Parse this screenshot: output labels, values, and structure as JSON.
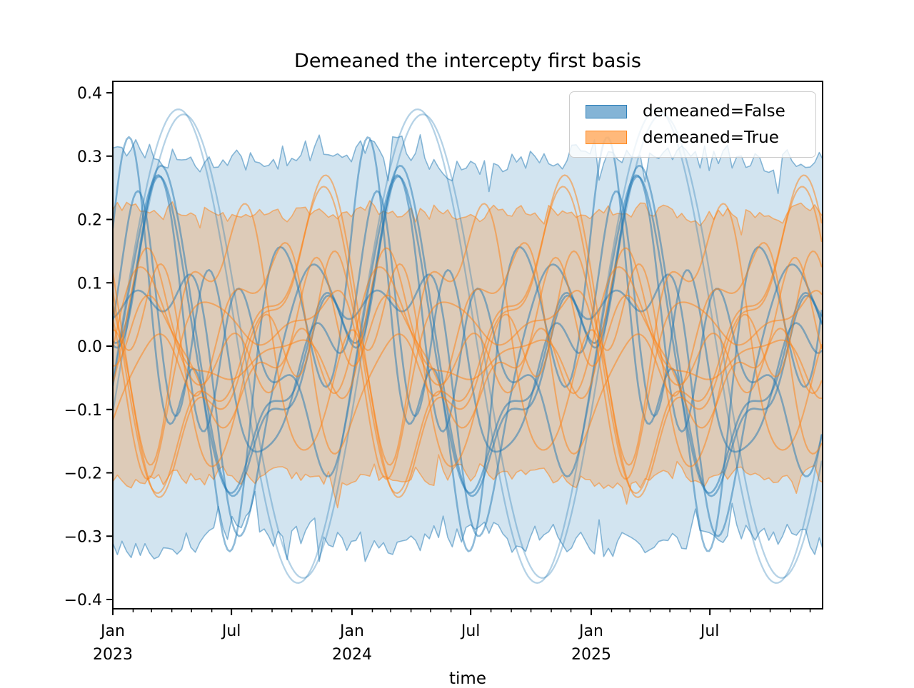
{
  "title": "Demeaned the intercepty first basis",
  "xlabel": "time",
  "legend": {
    "entries": [
      {
        "label": "demeaned=False",
        "color": "#1f77b4"
      },
      {
        "label": "demeaned=True",
        "color": "#ff7f0e"
      }
    ]
  },
  "chart_data": {
    "type": "line",
    "title": "Demeaned the intercepty first basis",
    "xlabel": "time",
    "ylabel": "",
    "ylim": [
      -0.4,
      0.4
    ],
    "grid": false,
    "legend_position": "upper right",
    "yticks": [
      {
        "value": 0.4,
        "label": "0.4"
      },
      {
        "value": 0.3,
        "label": "0.3"
      },
      {
        "value": 0.2,
        "label": "0.2"
      },
      {
        "value": 0.1,
        "label": "0.1"
      },
      {
        "value": 0.0,
        "label": "0.0"
      },
      {
        "value": -0.1,
        "label": "−0.1"
      },
      {
        "value": -0.2,
        "label": "−0.2"
      },
      {
        "value": -0.3,
        "label": "−0.3"
      },
      {
        "value": -0.4,
        "label": "−0.4"
      }
    ],
    "x_domain_days": [
      0,
      1083
    ],
    "x_major_ticks": [
      {
        "day": 0,
        "label": "Jan",
        "year": "2023"
      },
      {
        "day": 181,
        "label": "Jul",
        "year": ""
      },
      {
        "day": 365,
        "label": "Jan",
        "year": "2024"
      },
      {
        "day": 546,
        "label": "Jul",
        "year": ""
      },
      {
        "day": 730,
        "label": "Jan",
        "year": "2025"
      },
      {
        "day": 911,
        "label": "Jul",
        "year": ""
      }
    ],
    "month_start_days": [
      0,
      31,
      59,
      90,
      120,
      151,
      181,
      212,
      243,
      273,
      304,
      334
    ],
    "n_years": 3,
    "styles": {
      "band_fill_alpha": 0.2,
      "orange_band_fill_alpha": 0.25,
      "band_edge_alpha": 0.5,
      "band_edge_width": 1.6
    },
    "groups": [
      {
        "name": "demeaned=False",
        "color": "#1f77b4",
        "band": {
          "upper_mean": 0.302,
          "lower_mean": -0.302,
          "jitter": 0.02,
          "spike_chance": 0.12,
          "spike_mag": 0.05,
          "seed": 11,
          "step_days": 7,
          "annual_mod": 0.012
        },
        "lines": [
          {
            "type": "seasonal",
            "amplitude": 0.374,
            "peak_day": 100,
            "alpha": 0.33,
            "width": 2.3
          },
          {
            "type": "seasonal",
            "amplitude": 0.366,
            "peak_day": 108,
            "alpha": 0.33,
            "width": 2.3
          },
          {
            "type": "gp",
            "seed": 101,
            "amplitude": 0.285,
            "harmonics": [
              1,
              0.55,
              0.3,
              0.15
            ],
            "alpha": 0.5,
            "width": 2.6
          },
          {
            "type": "gp",
            "seed": 101,
            "amplitude": 0.268,
            "harmonics": [
              1,
              0.55,
              0.3,
              0.15
            ],
            "phase_offset": 0.1,
            "alpha": 0.5,
            "width": 2.6
          },
          {
            "type": "gp",
            "seed": 103,
            "amplitude": 0.33,
            "harmonics": [
              1,
              0.65,
              0.8,
              0.3
            ],
            "alpha": 0.5,
            "width": 2.6
          },
          {
            "type": "gp",
            "seed": 104,
            "amplitude": 0.27,
            "harmonics": [
              0.85,
              1,
              0.5,
              0.3
            ],
            "alpha": 0.5,
            "width": 2.6
          },
          {
            "type": "gp",
            "seed": 105,
            "amplitude": 0.245,
            "harmonics": [
              1,
              0.4,
              0.85,
              0.45
            ],
            "alpha": 0.5,
            "width": 2.6
          },
          {
            "type": "gp",
            "seed": 106,
            "amplitude": 0.3,
            "harmonics": [
              1,
              0.8,
              0.3,
              0.2
            ],
            "alpha": 0.5,
            "width": 2.6
          }
        ]
      },
      {
        "name": "demeaned=True",
        "color": "#ff7f0e",
        "band": {
          "upper_mean": 0.212,
          "lower_mean": -0.207,
          "jitter": 0.013,
          "spike_chance": 0.1,
          "spike_mag": 0.03,
          "seed": 21,
          "step_days": 7,
          "annual_mod": 0.006
        },
        "lines": [
          {
            "type": "gp",
            "seed": 201,
            "amplitude": 0.27,
            "harmonics": [
              1,
              0.45,
              0.2,
              0.1
            ],
            "alpha": 0.5,
            "width": 2.1
          },
          {
            "type": "gp",
            "seed": 201,
            "amplitude": 0.252,
            "harmonics": [
              1,
              0.45,
              0.2,
              0.1
            ],
            "phase_offset": 0.09,
            "alpha": 0.5,
            "width": 2.1
          },
          {
            "type": "gp",
            "seed": 203,
            "amplitude": 0.225,
            "harmonics": [
              1,
              0.7,
              0.5,
              0.25
            ],
            "alpha": 0.5,
            "width": 2.1
          },
          {
            "type": "gp",
            "seed": 204,
            "amplitude": 0.21,
            "harmonics": [
              0.8,
              1,
              0.45,
              0.2
            ],
            "alpha": 0.5,
            "width": 2.1
          },
          {
            "type": "gp",
            "seed": 205,
            "amplitude": 0.19,
            "harmonics": [
              1,
              0.5,
              0.8,
              0.3
            ],
            "alpha": 0.5,
            "width": 2.1
          },
          {
            "type": "gp",
            "seed": 206,
            "amplitude": 0.17,
            "harmonics": [
              1,
              0.9,
              0.4,
              0.3
            ],
            "alpha": 0.5,
            "width": 2.1
          },
          {
            "type": "gp",
            "seed": 207,
            "amplitude": 0.155,
            "harmonics": [
              0.7,
              1,
              0.6,
              0.3
            ],
            "alpha": 0.5,
            "width": 2.1
          },
          {
            "type": "gp",
            "seed": 208,
            "amplitude": 0.14,
            "harmonics": [
              1,
              0.6,
              0.5,
              0.4
            ],
            "alpha": 0.5,
            "width": 2.1
          },
          {
            "type": "gp",
            "seed": 209,
            "amplitude": 0.125,
            "harmonics": [
              0.9,
              0.8,
              1,
              0.4
            ],
            "alpha": 0.5,
            "width": 2.1
          }
        ]
      }
    ]
  }
}
